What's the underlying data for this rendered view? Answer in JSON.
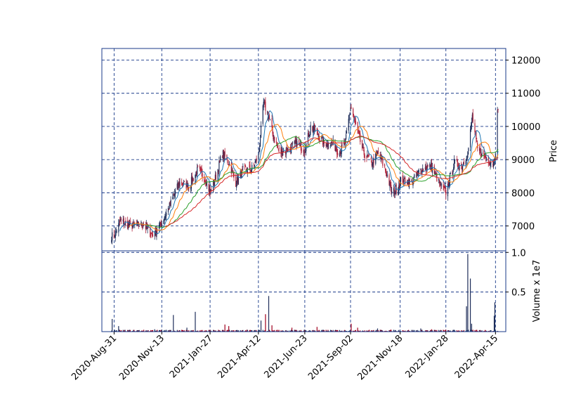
{
  "chart_data": {
    "type": "candlestick",
    "title": "",
    "xlabel": "",
    "colors": {
      "up": "#1f2e5a",
      "down": "#b2243c",
      "grid": "#1a3a8a",
      "frame": "#1a3a8a",
      "volume_up": "#1f2e5a",
      "volume_down": "#a0001e",
      "mav_colors": [
        "#1f77b4",
        "#ff7f0e",
        "#2ca02c",
        "#d62728"
      ]
    },
    "grid": true,
    "x_range": [
      "2020-08-12",
      "2022-05-01"
    ],
    "x_tick_labels": [
      "2020-Aug-31",
      "2020-Nov-13",
      "2021-Jan-27",
      "2021-Apr-12",
      "2021-Jun-23",
      "2021-Sep-02",
      "2021-Nov-18",
      "2022-Jan-28",
      "2022-Apr-15"
    ],
    "x_tick_dates": [
      "2020-08-31",
      "2020-11-13",
      "2021-01-27",
      "2021-04-12",
      "2021-06-23",
      "2021-09-02",
      "2021-11-18",
      "2022-01-28",
      "2022-04-15"
    ],
    "price_panel": {
      "ylabel": "Price",
      "ylim": [
        6250,
        12350
      ],
      "yticks": [
        7000,
        8000,
        9000,
        10000,
        11000,
        12000
      ],
      "ytick_labels": [
        "7000",
        "8000",
        "9000",
        "10000",
        "11000",
        "12000"
      ]
    },
    "volume_panel": {
      "ylabel": "Volume x 1e7",
      "ylim": [
        0,
        1.02
      ],
      "yticks": [
        0.5,
        1.0
      ],
      "ytick_labels": [
        "0.5",
        "1.0"
      ]
    },
    "close_anchors": [
      [
        "2020-08-31",
        6700
      ],
      [
        "2020-09-10",
        7150
      ],
      [
        "2020-09-25",
        7000
      ],
      [
        "2020-10-15",
        7050
      ],
      [
        "2020-10-30",
        6700
      ],
      [
        "2020-11-13",
        7100
      ],
      [
        "2020-11-25",
        7600
      ],
      [
        "2020-12-10",
        8300
      ],
      [
        "2020-12-25",
        8200
      ],
      [
        "2021-01-08",
        8700
      ],
      [
        "2021-01-20",
        8400
      ],
      [
        "2021-01-27",
        8000
      ],
      [
        "2021-02-05",
        8500
      ],
      [
        "2021-02-15",
        9200
      ],
      [
        "2021-02-25",
        8900
      ],
      [
        "2021-03-08",
        8300
      ],
      [
        "2021-03-20",
        8700
      ],
      [
        "2021-04-01",
        8700
      ],
      [
        "2021-04-12",
        9100
      ],
      [
        "2021-04-20",
        10700
      ],
      [
        "2021-04-28",
        10300
      ],
      [
        "2021-05-05",
        9700
      ],
      [
        "2021-05-15",
        9200
      ],
      [
        "2021-05-28",
        9300
      ],
      [
        "2021-06-10",
        9500
      ],
      [
        "2021-06-23",
        9300
      ],
      [
        "2021-07-02",
        10000
      ],
      [
        "2021-07-12",
        9800
      ],
      [
        "2021-07-22",
        9500
      ],
      [
        "2021-08-05",
        9500
      ],
      [
        "2021-08-15",
        9200
      ],
      [
        "2021-08-25",
        9500
      ],
      [
        "2021-09-02",
        10600
      ],
      [
        "2021-09-12",
        9900
      ],
      [
        "2021-09-22",
        9200
      ],
      [
        "2021-10-05",
        8900
      ],
      [
        "2021-10-15",
        9200
      ],
      [
        "2021-10-28",
        8600
      ],
      [
        "2021-11-05",
        8000
      ],
      [
        "2021-11-12",
        8100
      ],
      [
        "2021-11-20",
        8400
      ],
      [
        "2021-12-05",
        8300
      ],
      [
        "2021-12-20",
        8700
      ],
      [
        "2022-01-05",
        8800
      ],
      [
        "2022-01-20",
        8200
      ],
      [
        "2022-01-28",
        8000
      ],
      [
        "2022-02-10",
        8900
      ],
      [
        "2022-02-22",
        8800
      ],
      [
        "2022-03-03",
        9200
      ],
      [
        "2022-03-10",
        10300
      ],
      [
        "2022-03-18",
        9300
      ],
      [
        "2022-03-28",
        9100
      ],
      [
        "2022-04-05",
        9000
      ],
      [
        "2022-04-12",
        8900
      ],
      [
        "2022-04-15",
        9300
      ],
      [
        "2022-04-18",
        10400
      ]
    ],
    "moving_averages": [
      {
        "window": 10,
        "color": "#1f77b4"
      },
      {
        "window": 20,
        "color": "#ff7f0e"
      },
      {
        "window": 40,
        "color": "#2ca02c"
      },
      {
        "window": 60,
        "color": "#d62728"
      }
    ],
    "volume_spikes": [
      [
        "2020-08-29",
        0.16
      ],
      [
        "2020-09-08",
        0.07
      ],
      [
        "2020-11-01",
        0.03
      ],
      [
        "2020-12-02",
        0.21
      ],
      [
        "2020-12-23",
        0.05
      ],
      [
        "2021-01-03",
        0.25
      ],
      [
        "2021-02-20",
        0.09
      ],
      [
        "2021-02-26",
        0.07
      ],
      [
        "2021-04-17",
        0.14
      ],
      [
        "2021-04-24",
        0.22
      ],
      [
        "2021-04-29",
        0.45
      ],
      [
        "2021-05-04",
        0.08
      ],
      [
        "2021-06-04",
        0.05
      ],
      [
        "2021-07-12",
        0.06
      ],
      [
        "2021-09-04",
        0.1
      ],
      [
        "2021-09-12",
        0.05
      ],
      [
        "2021-10-15",
        0.04
      ],
      [
        "2021-12-20",
        0.04
      ],
      [
        "2022-01-07",
        0.03
      ],
      [
        "2022-03-02",
        0.32
      ],
      [
        "2022-03-04",
        0.98
      ],
      [
        "2022-03-07",
        0.67
      ],
      [
        "2022-03-10",
        0.1
      ],
      [
        "2022-04-14",
        0.2
      ],
      [
        "2022-04-15",
        0.37
      ]
    ],
    "ohlc_note_series_seed": 7
  }
}
